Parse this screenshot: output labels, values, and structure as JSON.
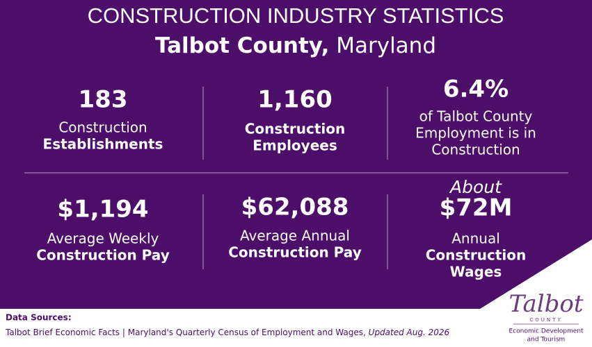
{
  "header": {
    "title": "CONSTRUCTION INDUSTRY STATISTICS",
    "subtitle_bold": "Talbot County,",
    "subtitle_regular": "Maryland"
  },
  "stats": [
    {
      "value": "183",
      "lines": [
        {
          "text": "Construction",
          "bold": false
        },
        {
          "text": "Establishments",
          "bold": true
        }
      ]
    },
    {
      "value": "1,160",
      "lines": [
        {
          "text": "Construction",
          "bold": true
        },
        {
          "text": "Employees",
          "bold": true
        }
      ]
    },
    {
      "value": "6.4%",
      "lines": [
        {
          "text": "of Talbot County",
          "bold": false
        },
        {
          "text": "Employment is in",
          "bold": false
        },
        {
          "text": "Construction",
          "bold": false
        }
      ]
    },
    {
      "value": "$1,194",
      "lines": [
        {
          "text": "Average Weekly",
          "bold": false
        },
        {
          "text": "Construction Pay",
          "bold": true
        }
      ]
    },
    {
      "value": "$62,088",
      "lines": [
        {
          "text": "Average Annual",
          "bold": false
        },
        {
          "text": "Construction Pay",
          "bold": true
        }
      ]
    },
    {
      "prefix": "About",
      "value": "$72M",
      "lines": [
        {
          "text": "Annual",
          "bold": false
        },
        {
          "text": "Construction",
          "bold": true
        },
        {
          "text": "Wages",
          "bold": true
        }
      ]
    }
  ],
  "footer": {
    "sources_label": "Data Sources:",
    "source_1": "Talbot Brief Economic Facts",
    "separator": "|",
    "source_2": "Maryland's Quarterly Census of Employment and Wages,",
    "updated": "Updated Aug. 2026"
  },
  "logo": {
    "name": "Talbot",
    "county": "COUNTY",
    "line_1": "Economic Development",
    "line_2": "and Tourism"
  }
}
